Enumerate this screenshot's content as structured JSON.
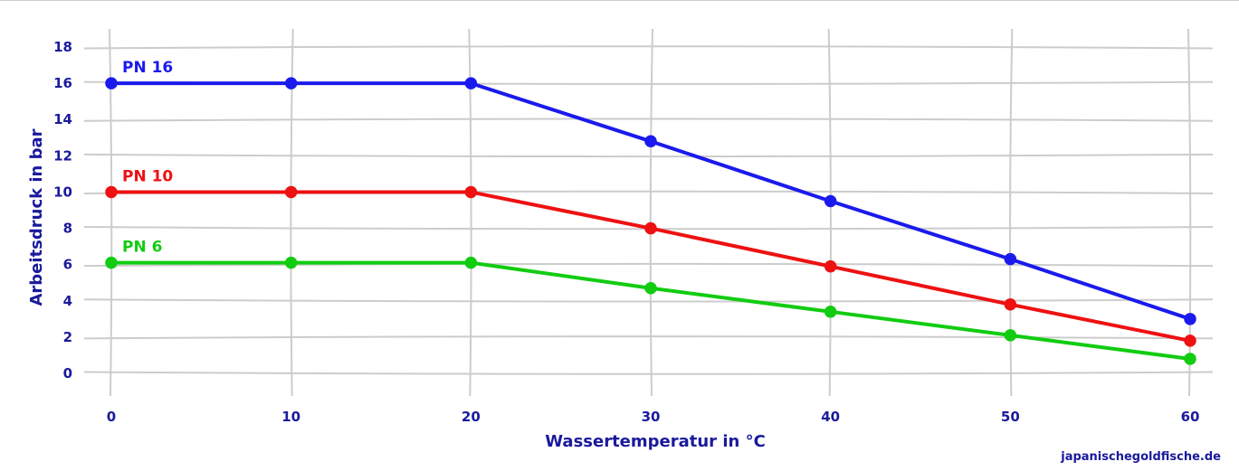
{
  "chart_data": {
    "type": "line",
    "xlabel": "Wassertemperatur in °C",
    "ylabel": "Arbeitsdruck in bar",
    "xlim": [
      0,
      60
    ],
    "ylim": [
      0,
      18
    ],
    "xticks": [
      0,
      10,
      20,
      30,
      40,
      50,
      60
    ],
    "yticks": [
      0,
      2,
      4,
      6,
      8,
      10,
      12,
      14,
      16,
      18
    ],
    "grid": true,
    "x": [
      0,
      10,
      20,
      30,
      40,
      50,
      60
    ],
    "series": [
      {
        "name": "PN 16",
        "color": "#1a1aee",
        "values": [
          16,
          16,
          16,
          12.8,
          9.5,
          6.3,
          3
        ]
      },
      {
        "name": "PN 10",
        "color": "#ee1111",
        "values": [
          10,
          10,
          10,
          8,
          5.9,
          3.8,
          1.8
        ]
      },
      {
        "name": "PN 6",
        "color": "#11cc11",
        "values": [
          6.1,
          6.1,
          6.1,
          4.7,
          3.4,
          2.1,
          0.8
        ]
      }
    ]
  },
  "credit": "japanischegoldfische.de"
}
